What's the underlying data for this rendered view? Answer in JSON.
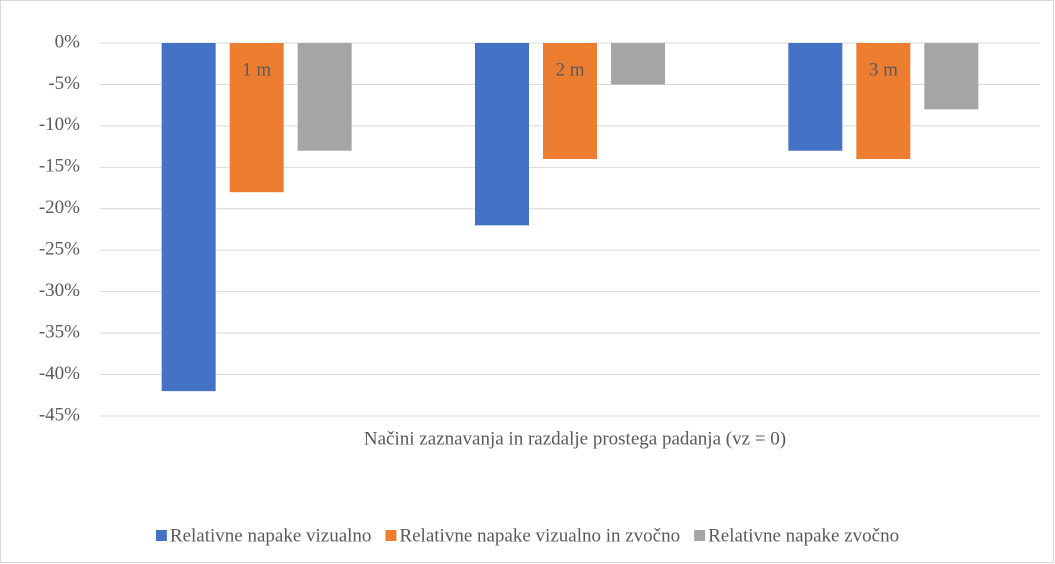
{
  "chart_data": {
    "type": "bar",
    "x_label": "Načini zaznavanja in razdalje prostega padanja (vz = 0)",
    "categories": [
      "1 m",
      "2 m",
      "3 m"
    ],
    "series": [
      {
        "name": "Relativne napake vizualno",
        "color": "#4472c4",
        "values": [
          -42,
          -22,
          -13
        ]
      },
      {
        "name": "Relativne napake vizualno in zvočno",
        "color": "#ed7d31",
        "values": [
          -18,
          -14,
          -14
        ]
      },
      {
        "name": "Relativne napake zvočno",
        "color": "#a5a5a5",
        "values": [
          -13,
          -5,
          -8
        ]
      }
    ],
    "ylim": [
      -45,
      0
    ],
    "yticks": [
      {
        "value": 0,
        "label": "0%"
      },
      {
        "value": -5,
        "label": "-5%"
      },
      {
        "value": -10,
        "label": "-10%"
      },
      {
        "value": -15,
        "label": "-15%"
      },
      {
        "value": -20,
        "label": "-20%"
      },
      {
        "value": -25,
        "label": "-25%"
      },
      {
        "value": -30,
        "label": "-30%"
      },
      {
        "value": -35,
        "label": "-35%"
      },
      {
        "value": -40,
        "label": "-40%"
      },
      {
        "value": -45,
        "label": "-45%"
      }
    ],
    "grid": true,
    "legend": "bottom"
  }
}
